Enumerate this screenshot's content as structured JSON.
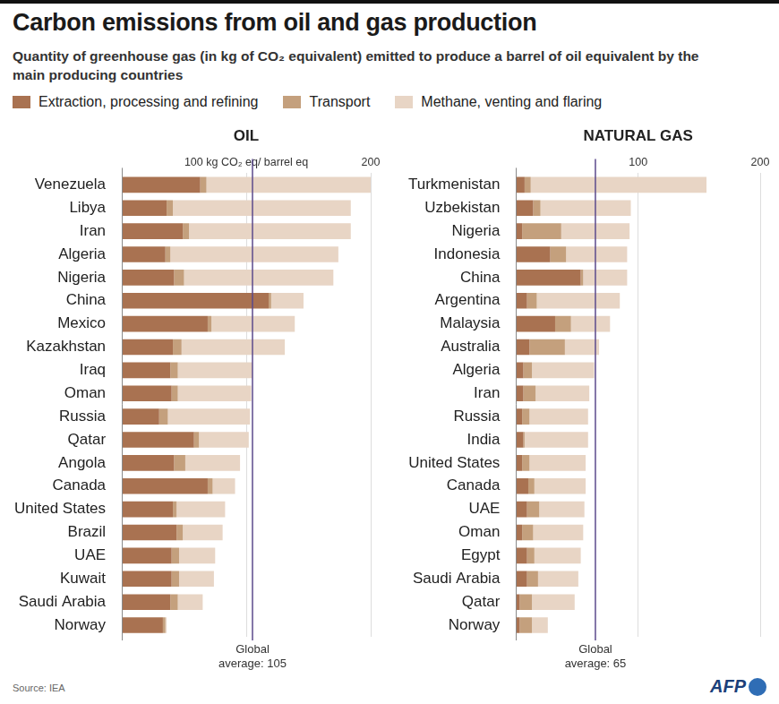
{
  "title": "Carbon emissions from oil and gas production",
  "subtitle": "Quantity of greenhouse gas (in kg of CO₂ equivalent) emitted to produce a barrel of oil equivalent by the main producing countries",
  "source": "Source: IEA",
  "credit": "AFP",
  "chart_data": [
    {
      "type": "bar",
      "title": "OIL",
      "orientation": "horizontal",
      "stacked": true,
      "grid": true,
      "categories": [
        "Venezuela",
        "Libya",
        "Iran",
        "Algeria",
        "Nigeria",
        "China",
        "Mexico",
        "Kazakhstan",
        "Iraq",
        "Oman",
        "Russia",
        "Qatar",
        "Angola",
        "Canada",
        "United States",
        "Brazil",
        "UAE",
        "Kuwait",
        "Saudi Arabia",
        "Norway"
      ],
      "series": [
        {
          "name": "Extraction, processing and refining",
          "color": "#a97251",
          "values": [
            63,
            36,
            49,
            35,
            42,
            118,
            69,
            41,
            39,
            40,
            30,
            58,
            42,
            69,
            41,
            44,
            40,
            40,
            39,
            33
          ]
        },
        {
          "name": "Transport",
          "color": "#c4a07d",
          "values": [
            5,
            5,
            5,
            4,
            8,
            2,
            3,
            7,
            6,
            5,
            7,
            4,
            9,
            4,
            3,
            5,
            6,
            6,
            6,
            2
          ]
        },
        {
          "name": "Methane, venting and flaring",
          "color": "#e8d5c5",
          "values": [
            132,
            143,
            130,
            135,
            120,
            26,
            67,
            83,
            60,
            59,
            66,
            40,
            44,
            18,
            39,
            32,
            29,
            28,
            20,
            1
          ]
        }
      ],
      "xlim": [
        0,
        200
      ],
      "xticks": [
        {
          "value": 100,
          "label": "100 kg CO₂ eq/ barrel eq"
        },
        200
      ],
      "annotations": [
        {
          "x": 105,
          "label": "Global average: 105"
        }
      ]
    },
    {
      "type": "bar",
      "title": "NATURAL GAS",
      "orientation": "horizontal",
      "stacked": true,
      "grid": true,
      "categories": [
        "Turkmenistan",
        "Uzbekistan",
        "Nigeria",
        "Indonesia",
        "China",
        "Argentina",
        "Malaysia",
        "Australia",
        "Algeria",
        "Iran",
        "Russia",
        "India",
        "United States",
        "Canada",
        "UAE",
        "Oman",
        "Egypt",
        "Saudi Arabia",
        "Qatar",
        "Norway"
      ],
      "series": [
        {
          "name": "Extraction, processing and refining",
          "color": "#a97251",
          "values": [
            7,
            14,
            5,
            28,
            53,
            9,
            32,
            11,
            6,
            6,
            5,
            6,
            5,
            10,
            9,
            5,
            9,
            9,
            3,
            3
          ]
        },
        {
          "name": "Transport",
          "color": "#c4a07d",
          "values": [
            5,
            6,
            32,
            13,
            2,
            8,
            13,
            29,
            7,
            10,
            6,
            1,
            6,
            5,
            10,
            9,
            6,
            9,
            10,
            10
          ]
        },
        {
          "name": "Methane, venting and flaring",
          "color": "#e8d5c5",
          "values": [
            144,
            74,
            56,
            50,
            36,
            68,
            32,
            28,
            51,
            44,
            48,
            52,
            46,
            42,
            37,
            41,
            38,
            33,
            35,
            13
          ]
        }
      ],
      "xlim": [
        0,
        200
      ],
      "xticks": [
        100,
        200
      ],
      "annotations": [
        {
          "x": 65,
          "label": "Global average: 65"
        }
      ]
    }
  ]
}
